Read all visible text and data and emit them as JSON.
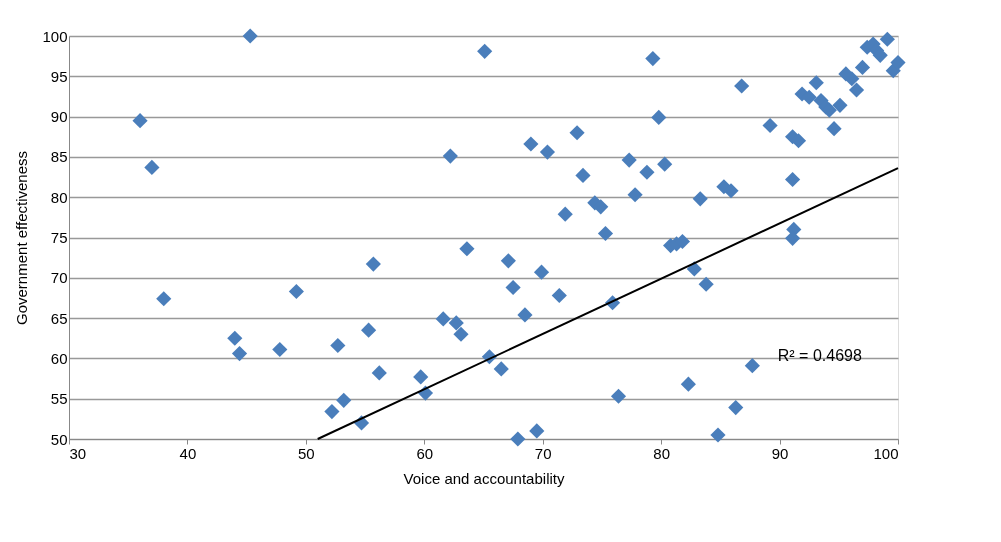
{
  "chart_data": {
    "type": "scatter",
    "xlabel": "Voice and accountability",
    "ylabel": "Government effectiveness",
    "xlim": [
      30,
      100
    ],
    "xticks": [
      30,
      40,
      50,
      60,
      70,
      80,
      90,
      100
    ],
    "ylim": [
      50,
      100
    ],
    "yticks": [
      50,
      55,
      60,
      65,
      70,
      75,
      80,
      85,
      90,
      95,
      100
    ],
    "grid": "y",
    "marker": "diamond",
    "annotations": [
      "R² = 0.4698"
    ],
    "series": [
      {
        "color": "#4a7ebb",
        "x": [
          36,
          37,
          38,
          45.3,
          44,
          44.4,
          47.8,
          49.2,
          52.2,
          52.7,
          53.2,
          54.7,
          55.3,
          55.7,
          56.2,
          59.7,
          60.1,
          61.6,
          62.2,
          62.7,
          63.1,
          63.6,
          65.1,
          65.5,
          66.5,
          67.1,
          67.5,
          67.9,
          68.5,
          69.0,
          69.5,
          69.9,
          70.4,
          71.4,
          71.9,
          72.9,
          73.4,
          74.4,
          74.9,
          75.3,
          75.9,
          76.4,
          77.3,
          77.8,
          78.8,
          79.3,
          79.8,
          80.3,
          80.8,
          81.3,
          81.8,
          82.3,
          82.8,
          83.3,
          83.8,
          84.8,
          85.3,
          85.9,
          86.3,
          86.8,
          87.7,
          89.2,
          91.1,
          91.1,
          91.2,
          91.1,
          91.6,
          91.9,
          92.5,
          93.1,
          93.5,
          93.9,
          94.2,
          94.6,
          95.1,
          95.6,
          96.1,
          96.5,
          97,
          97.4,
          97.9,
          98.2,
          98.5,
          99.1,
          99.6,
          100
        ],
        "values": [
          89.5,
          83.7,
          67.4,
          100,
          62.5,
          60.6,
          61.1,
          68.3,
          53.4,
          61.6,
          54.8,
          52,
          63.5,
          71.7,
          58.2,
          57.7,
          55.7,
          64.9,
          85.1,
          64.4,
          63,
          73.6,
          98.1,
          60.2,
          58.7,
          72.1,
          68.8,
          50,
          65.4,
          86.6,
          51,
          70.7,
          85.6,
          67.8,
          77.9,
          88,
          82.7,
          79.3,
          78.8,
          75.5,
          66.9,
          55.3,
          84.6,
          80.3,
          83.1,
          97.2,
          89.9,
          84.1,
          74,
          74.2,
          74.5,
          56.8,
          71.1,
          79.8,
          69.2,
          50.5,
          81.3,
          80.8,
          53.9,
          93.8,
          59.1,
          88.9,
          87.5,
          82.2,
          76,
          74.9,
          87,
          92.8,
          92.4,
          94.2,
          92,
          91.2,
          90.8,
          88.5,
          91.4,
          95.3,
          94.7,
          93.3,
          96.1,
          98.6,
          99,
          98.2,
          97.6,
          99.6,
          95.7,
          96.7
        ]
      },
      {
        "type": "line",
        "color": "#000000",
        "x": [
          51,
          100
        ],
        "values": [
          50,
          83.6
        ],
        "marker": "none"
      }
    ]
  }
}
